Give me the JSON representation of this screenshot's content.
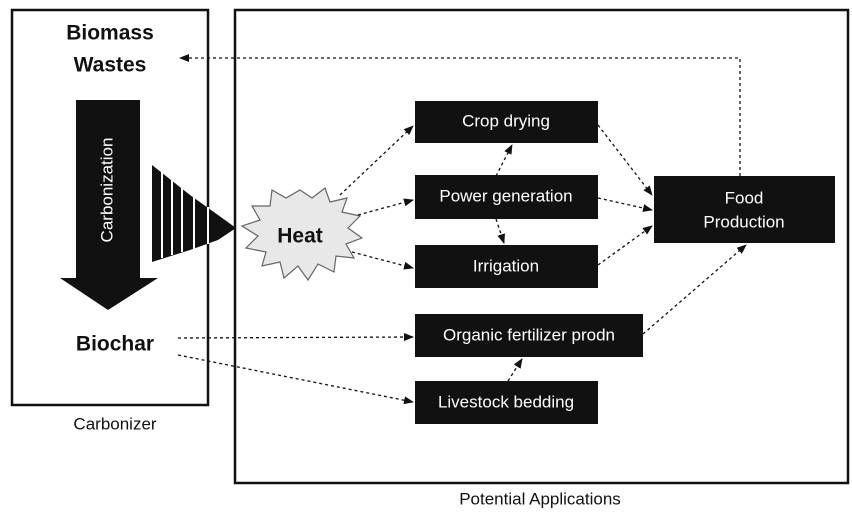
{
  "carbonizer": {
    "label": "Carbonizer",
    "input": [
      "Biomass",
      "Wastes"
    ],
    "process": "Carbonization",
    "output": "Biochar"
  },
  "applications": {
    "label": "Potential Applications",
    "heat": "Heat",
    "nodes": [
      {
        "label": "Crop drying"
      },
      {
        "label": "Power generation"
      },
      {
        "label": "Irrigation"
      },
      {
        "label": "Organic fertilizer prodn"
      },
      {
        "label": "Livestock bedding"
      }
    ],
    "result": [
      "Food",
      "Production"
    ]
  }
}
